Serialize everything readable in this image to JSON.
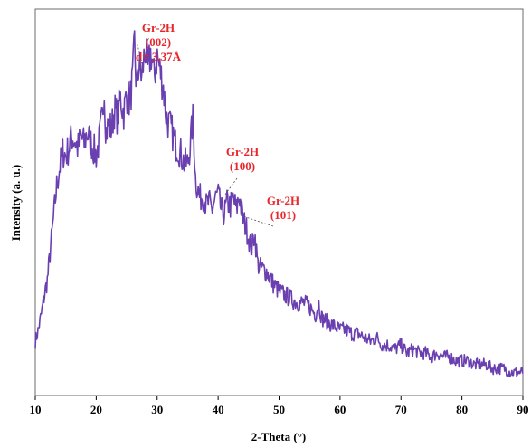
{
  "chart_data": {
    "type": "line",
    "xlabel": "2-Theta (°)",
    "ylabel": "Intensity (a. u.)",
    "xlim": [
      10,
      90
    ],
    "ylim": [
      0,
      100
    ],
    "xticks": [
      "10",
      "20",
      "30",
      "40",
      "50",
      "60",
      "70",
      "80",
      "90"
    ],
    "yticks_shown": false,
    "grid": false,
    "legend": "none",
    "colors": {
      "line": "#6a3fb0",
      "annotation": "#e8262b",
      "axis": "#000000"
    },
    "series": [
      {
        "x": [
          10,
          10.5,
          11,
          11.5,
          12,
          12.5,
          13,
          13.5,
          14,
          14.5,
          15,
          15.5,
          16,
          16.5,
          17,
          17.5,
          18,
          18.5,
          19,
          19.5,
          20,
          20.5,
          21,
          21.3,
          21.6,
          22,
          22.5,
          23,
          23.5,
          24,
          24.5,
          25,
          25.5,
          26,
          26.3,
          26.6,
          27,
          27.5,
          28,
          28.5,
          29,
          29.5,
          30,
          30.5,
          31,
          31.5,
          32,
          32.5,
          33,
          33.5,
          34,
          34.5,
          35,
          35.5,
          35.9,
          36.3,
          37,
          37.5,
          38,
          38.5,
          39,
          39.5,
          40,
          40.5,
          41,
          41.5,
          42,
          42.5,
          43,
          43.5,
          44,
          44.5,
          45,
          45.5,
          46,
          46.5,
          47,
          48,
          49,
          50,
          51,
          52,
          53,
          54,
          55,
          56,
          56.5,
          57,
          58,
          59,
          60,
          61,
          62,
          63,
          64,
          65,
          66,
          67,
          68,
          69,
          70,
          71,
          72,
          73,
          74,
          75,
          76,
          77,
          78,
          79,
          80,
          81,
          82,
          83,
          84,
          85,
          86,
          87,
          88,
          89,
          90
        ],
        "y": [
          14,
          17,
          21,
          26,
          30,
          38,
          46,
          54,
          59,
          63,
          62,
          64,
          67,
          66,
          64,
          67,
          65,
          68,
          66,
          64,
          62,
          66,
          72,
          80,
          68,
          70,
          69,
          74,
          72,
          77,
          73,
          78,
          76,
          82,
          92,
          78,
          86,
          82,
          90,
          84,
          89,
          82,
          88,
          84,
          80,
          72,
          70,
          68,
          65,
          64,
          62,
          60,
          60,
          66,
          72,
          56,
          51,
          52,
          49,
          50,
          48,
          51,
          52,
          48,
          47,
          50,
          49,
          51,
          48,
          52,
          46,
          44,
          41,
          38,
          42,
          34,
          33,
          32,
          29,
          27,
          26,
          25,
          24,
          24,
          23,
          21,
          24,
          20,
          19,
          18,
          17,
          17,
          16,
          16,
          15,
          14,
          15,
          13,
          13,
          12,
          13,
          11,
          12,
          11,
          11,
          10,
          11,
          10,
          10,
          9,
          9,
          9,
          8,
          8,
          8,
          7,
          7,
          7,
          6,
          6,
          6
        ]
      }
    ],
    "annotations": [
      {
        "lines": [
          "Gr-2H",
          "(002)",
          "d= 3.37Å"
        ],
        "x": 26.8,
        "y": 90
      },
      {
        "lines": [
          "Gr-2H",
          "(100)"
        ],
        "x": 41,
        "y": 51
      },
      {
        "lines": [
          "Gr-2H",
          "(101)"
        ],
        "x": 43.5,
        "y": 46
      }
    ]
  }
}
